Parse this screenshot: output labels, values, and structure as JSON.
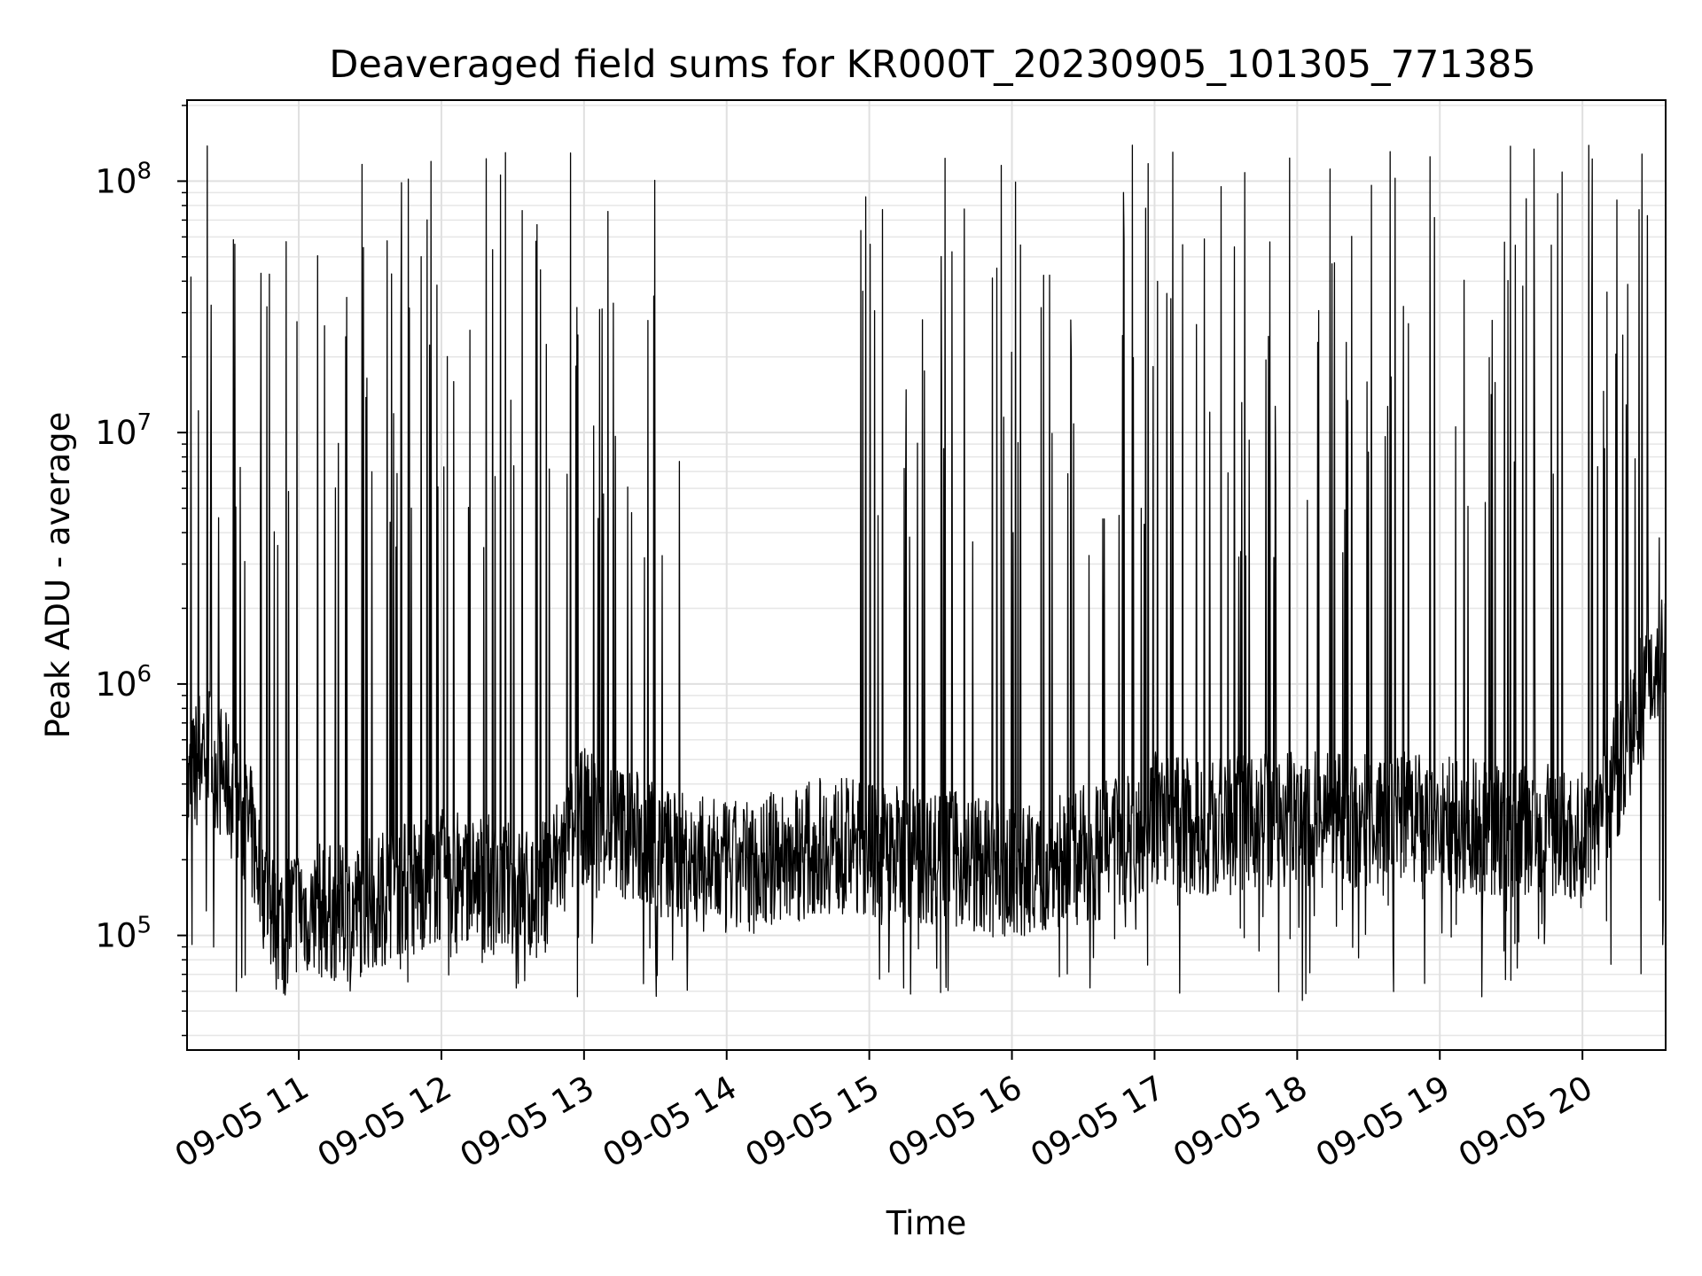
{
  "chart_data": {
    "type": "line",
    "title": "Deaveraged field sums for KR000T_20230905_101305_771385",
    "xlabel": "Time",
    "ylabel": "Peak ADU - average",
    "yscale": "log",
    "ylim": [
      35000,
      210000000
    ],
    "xlim": [
      "09-05 10:13",
      "09-05 20:35"
    ],
    "x_ticks": [
      "09-05 11",
      "09-05 12",
      "09-05 13",
      "09-05 14",
      "09-05 15",
      "09-05 16",
      "09-05 17",
      "09-05 18",
      "09-05 19",
      "09-05 20"
    ],
    "y_ticks": [
      {
        "value": 100000,
        "base": "10",
        "exp": "5"
      },
      {
        "value": 1000000,
        "base": "10",
        "exp": "6"
      },
      {
        "value": 10000000,
        "base": "10",
        "exp": "7"
      },
      {
        "value": 100000000,
        "base": "10",
        "exp": "8"
      }
    ],
    "grid": true,
    "line_color": "#000000",
    "series": [
      {
        "points": [
          [
            "09-05 10:13",
            350000
          ],
          [
            "09-05 10:20",
            600000
          ],
          [
            "09-05 10:30",
            400000
          ],
          [
            "09-05 10:40",
            250000
          ],
          [
            "09-05 10:50",
            110000
          ],
          [
            "09-05 11:00",
            130000
          ],
          [
            "09-05 11:20",
            120000
          ],
          [
            "09-05 11:40",
            150000
          ],
          [
            "09-05 12:00",
            170000
          ],
          [
            "09-05 12:20",
            160000
          ],
          [
            "09-05 12:40",
            140000
          ],
          [
            "09-05 13:00",
            300000
          ],
          [
            "09-05 13:20",
            250000
          ],
          [
            "09-05 13:40",
            200000
          ],
          [
            "09-05 14:00",
            180000
          ],
          [
            "09-05 14:20",
            200000
          ],
          [
            "09-05 14:40",
            230000
          ],
          [
            "09-05 15:00",
            220000
          ],
          [
            "09-05 15:20",
            210000
          ],
          [
            "09-05 15:40",
            200000
          ],
          [
            "09-05 16:00",
            170000
          ],
          [
            "09-05 16:20",
            200000
          ],
          [
            "09-05 16:40",
            220000
          ],
          [
            "09-05 17:00",
            300000
          ],
          [
            "09-05 17:20",
            260000
          ],
          [
            "09-05 17:40",
            280000
          ],
          [
            "09-05 18:00",
            300000
          ],
          [
            "09-05 18:20",
            280000
          ],
          [
            "09-05 18:40",
            290000
          ],
          [
            "09-05 19:00",
            280000
          ],
          [
            "09-05 19:20",
            270000
          ],
          [
            "09-05 19:40",
            260000
          ],
          [
            "09-05 20:00",
            240000
          ],
          [
            "09-05 20:15",
            450000
          ],
          [
            "09-05 20:25",
            900000
          ],
          [
            "09-05 20:35",
            1500000
          ]
        ],
        "spike_peak_range": [
          3000000,
          140000000
        ],
        "spike_floor_range": [
          55000,
          150000
        ]
      }
    ]
  }
}
